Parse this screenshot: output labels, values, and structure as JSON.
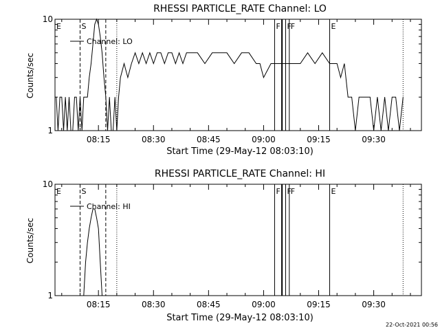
{
  "timestamp": "22-Oct-2021 00:56",
  "chart_data": [
    {
      "type": "line",
      "title": "RHESSI PARTICLE_RATE Channel: LO",
      "xlabel": "Start Time (29-May-12 08:03:10)",
      "ylabel": "Counts/sec",
      "y_scale": "log",
      "xlim": [
        "08:03:10",
        "09:43:00"
      ],
      "ylim": [
        1,
        10
      ],
      "x_ticks": [
        "08:15",
        "08:30",
        "08:45",
        "09:00",
        "09:15",
        "09:30"
      ],
      "y_ticks": [
        "1",
        "10"
      ],
      "legend": {
        "placement": "top-left",
        "label": "Channel: LO"
      },
      "series": [
        {
          "x": [
            "08:03:30",
            "08:04:00",
            "08:04:30",
            "08:05:00",
            "08:05:30",
            "08:06:00",
            "08:06:30",
            "08:07:00",
            "08:07:30",
            "08:08:00",
            "08:08:30",
            "08:09:00",
            "08:09:30",
            "08:10:00",
            "08:10:30",
            "08:11:00",
            "08:11:30",
            "08:12:00",
            "08:12:30",
            "08:13:00",
            "08:13:30",
            "08:14:00",
            "08:14:30",
            "08:15:00",
            "08:15:30",
            "08:16:00",
            "08:16:30",
            "08:17:00",
            "08:17:30",
            "08:18:00",
            "08:18:30",
            "08:19:00",
            "08:19:30",
            "08:20:00",
            "08:20:30",
            "08:21:00",
            "08:22:00",
            "08:23:00",
            "08:24:00",
            "08:25:00",
            "08:26:00",
            "08:27:00",
            "08:28:00",
            "08:29:00",
            "08:30:00",
            "08:31:00",
            "08:32:00",
            "08:33:00",
            "08:34:00",
            "08:35:00",
            "08:36:00",
            "08:37:00",
            "08:38:00",
            "08:39:00",
            "08:40:00",
            "08:42:00",
            "08:44:00",
            "08:46:00",
            "08:48:00",
            "08:50:00",
            "08:52:00",
            "08:54:00",
            "08:56:00",
            "08:58:00",
            "08:59:00",
            "09:00:00",
            "09:02:00",
            "09:04:00",
            "09:06:00",
            "09:08:00",
            "09:10:00",
            "09:12:00",
            "09:14:00",
            "09:16:00",
            "09:18:00",
            "09:20:00",
            "09:21:00",
            "09:22:00",
            "09:23:00",
            "09:24:00",
            "09:25:00",
            "09:26:00",
            "09:27:00",
            "09:28:00",
            "09:29:00",
            "09:30:00",
            "09:31:00",
            "09:32:00",
            "09:33:00",
            "09:34:00",
            "09:35:00",
            "09:36:00",
            "09:37:00",
            "09:38:00"
          ],
          "values": [
            2,
            1,
            2,
            2,
            1,
            2,
            1,
            2,
            1,
            1,
            2,
            2,
            1,
            2,
            1,
            2,
            2,
            2,
            3,
            4,
            6,
            9,
            10,
            9,
            7,
            5,
            3,
            2,
            1,
            2,
            1,
            1,
            2,
            1,
            2,
            3,
            4,
            3,
            4,
            5,
            4,
            5,
            4,
            5,
            4,
            5,
            5,
            4,
            5,
            5,
            4,
            5,
            4,
            5,
            5,
            5,
            4,
            5,
            5,
            5,
            4,
            5,
            5,
            4,
            4,
            3,
            4,
            4,
            4,
            4,
            4,
            5,
            4,
            5,
            4,
            4,
            3,
            4,
            2,
            2,
            1,
            2,
            2,
            2,
            2,
            1,
            2,
            1,
            2,
            1,
            2,
            2,
            1,
            2
          ]
        }
      ],
      "flare_markers": [
        {
          "label": "E",
          "time": "08:03:10",
          "style": "solid"
        },
        {
          "label": "S",
          "time": "08:10:00",
          "style": "dashed"
        },
        {
          "label": "",
          "time": "08:17:00",
          "style": "dashed"
        },
        {
          "label": "",
          "time": "08:20:00",
          "style": "dotted"
        },
        {
          "label": "F",
          "time": "09:03:00",
          "style": "solid"
        },
        {
          "label": "",
          "time": "09:05:00",
          "style": "thick"
        },
        {
          "label": "F",
          "time": "09:06:00",
          "style": "solid"
        },
        {
          "label": "F",
          "time": "09:07:00",
          "style": "solid"
        },
        {
          "label": "E",
          "time": "09:18:00",
          "style": "solid"
        },
        {
          "label": "",
          "time": "09:38:00",
          "style": "dotted"
        }
      ]
    },
    {
      "type": "line",
      "title": "RHESSI PARTICLE_RATE Channel: HI",
      "xlabel": "Start Time (29-May-12 08:03:10)",
      "ylabel": "Counts/sec",
      "y_scale": "log",
      "xlim": [
        "08:03:10",
        "09:43:00"
      ],
      "ylim": [
        1,
        10
      ],
      "x_ticks": [
        "08:15",
        "08:30",
        "08:45",
        "09:00",
        "09:15",
        "09:30"
      ],
      "y_ticks": [
        "1",
        "10"
      ],
      "legend": {
        "placement": "top-left",
        "label": "Channel: HI"
      },
      "series": [
        {
          "x": [
            "08:11:00",
            "08:11:30",
            "08:12:00",
            "08:12:30",
            "08:13:00",
            "08:13:30",
            "08:14:00",
            "08:14:30",
            "08:15:00",
            "08:15:30",
            "08:16:00"
          ],
          "values": [
            1,
            2,
            3,
            4,
            5,
            6,
            6,
            5,
            4,
            2,
            1
          ]
        }
      ],
      "flare_markers": [
        {
          "label": "E",
          "time": "08:03:10",
          "style": "solid"
        },
        {
          "label": "S",
          "time": "08:10:00",
          "style": "dashed"
        },
        {
          "label": "",
          "time": "08:17:00",
          "style": "dashed"
        },
        {
          "label": "",
          "time": "08:20:00",
          "style": "dotted"
        },
        {
          "label": "F",
          "time": "09:03:00",
          "style": "solid"
        },
        {
          "label": "",
          "time": "09:05:00",
          "style": "thick"
        },
        {
          "label": "F",
          "time": "09:06:00",
          "style": "solid"
        },
        {
          "label": "F",
          "time": "09:07:00",
          "style": "solid"
        },
        {
          "label": "E",
          "time": "09:18:00",
          "style": "solid"
        },
        {
          "label": "",
          "time": "09:38:00",
          "style": "dotted"
        }
      ]
    }
  ]
}
